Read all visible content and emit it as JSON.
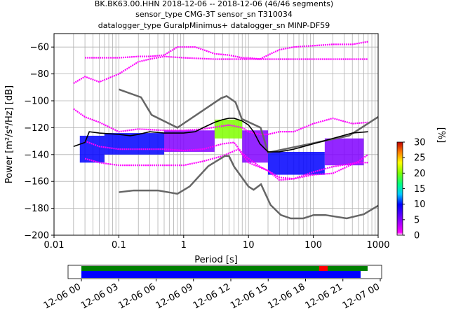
{
  "header": {
    "title_line1": "BK.BK63.00.HHN   2018-12-06 -- 2018-12-06  (46/46 segments)",
    "title_line2": "sensor_type CMG-3T sensor_sn T310034",
    "title_line3": "datalogger_type GuralpMinimus+ datalogger_sn MINP-DF59"
  },
  "colorbar": {
    "label": "[%]",
    "ticks": [
      "0",
      "5",
      "10",
      "15",
      "20",
      "25",
      "30"
    ],
    "range": [
      0,
      30
    ]
  },
  "timeline": {
    "tick_labels": [
      "12-06 00",
      "12-06 03",
      "12-06 06",
      "12-06 09",
      "12-06 12",
      "12-06 15",
      "12-06 18",
      "12-06 21",
      "12-07 00"
    ],
    "colors": {
      "coverage": "#008000",
      "gap": "#ff0000",
      "psd": "#0000ff"
    }
  },
  "chart_data": {
    "type": "heatmap",
    "title": "BK.BK63.00.HHN   2018-12-06 -- 2018-12-06  (46/46 segments)",
    "xlabel": "Period [s]",
    "ylabel": "Power [m²/s⁴/Hz] [dB]",
    "xscale": "log",
    "xlim": [
      0.01,
      1000
    ],
    "ylim": [
      -200,
      -50
    ],
    "x_ticks": [
      "0.01",
      "0.1",
      "1",
      "10",
      "100",
      "1000"
    ],
    "y_ticks": [
      "−200",
      "−180",
      "−160",
      "−140",
      "−120",
      "−100",
      "−80",
      "−60"
    ],
    "grid": true,
    "mode_line": {
      "color": "#000000",
      "x": [
        0.02,
        0.03,
        0.035,
        0.05,
        0.1,
        0.15,
        0.2,
        0.3,
        0.5,
        1,
        1.5,
        2,
        3,
        4,
        5,
        6,
        8,
        10,
        12,
        15,
        20,
        30,
        50,
        100,
        200,
        400,
        700
      ],
      "y": [
        -134,
        -131,
        -123,
        -124,
        -125,
        -126,
        -125,
        -123,
        -124,
        -124,
        -123,
        -120,
        -116,
        -114,
        -113,
        -113,
        -115,
        -118,
        -123,
        -132,
        -138,
        -138,
        -136,
        -132,
        -128,
        -124,
        -123
      ]
    },
    "nlnm": {
      "color": "#666666",
      "x": [
        0.1,
        0.17,
        0.4,
        0.8,
        1.24,
        2.4,
        4.3,
        5.0,
        6.0,
        10.0,
        12.0,
        15.6,
        21.9,
        31.6,
        45.0,
        70.0,
        101.0,
        154.0,
        328.0,
        600.0,
        1000.0
      ],
      "y": [
        -168.0,
        -166.7,
        -166.7,
        -169.2,
        -163.7,
        -148.6,
        -141.1,
        -141.1,
        -149.0,
        -163.8,
        -166.2,
        -162.1,
        -177.5,
        -185.0,
        -187.5,
        -187.5,
        -185.0,
        -185.0,
        -187.5,
        -184.4,
        -178.0
      ]
    },
    "nhnm": {
      "color": "#666666",
      "x": [
        0.1,
        0.22,
        0.32,
        0.8,
        3.8,
        4.6,
        6.3,
        7.9,
        15.4,
        20.0,
        354.8,
        1000.0
      ],
      "y": [
        -91.5,
        -97.4,
        -110.5,
        -120.0,
        -98.0,
        -96.5,
        -101.0,
        -113.5,
        -120.0,
        -138.5,
        -126.0,
        -112.0
      ]
    },
    "psd_density": [
      {
        "x": [
          0.025,
          0.06
        ],
        "y": [
          -146,
          -126
        ],
        "level": 10
      },
      {
        "x": [
          0.06,
          0.5
        ],
        "y": [
          -140,
          -124
        ],
        "level": 12
      },
      {
        "x": [
          0.5,
          3
        ],
        "y": [
          -138,
          -122
        ],
        "level": 8
      },
      {
        "x": [
          3,
          8
        ],
        "y": [
          -128,
          -114
        ],
        "level": 20
      },
      {
        "x": [
          8,
          20
        ],
        "y": [
          -146,
          -122
        ],
        "level": 6
      },
      {
        "x": [
          20,
          150
        ],
        "y": [
          -155,
          -138
        ],
        "level": 10
      },
      {
        "x": [
          150,
          600
        ],
        "y": [
          -148,
          -128
        ],
        "level": 8
      }
    ],
    "percentile_curves": [
      {
        "x": [
          0.03,
          0.04,
          0.1,
          0.2,
          0.3,
          0.5,
          0.8,
          1.5,
          2,
          3,
          5,
          8,
          10,
          15,
          20,
          30,
          50,
          100,
          200,
          400,
          700
        ],
        "y": [
          -68,
          -68,
          -68,
          -67,
          -67,
          -66,
          -60,
          -60,
          -62,
          -65,
          -66,
          -68,
          -68,
          -69,
          -66,
          -62,
          -60,
          -59,
          -58,
          -58,
          -56
        ]
      },
      {
        "x": [
          0.02,
          0.03,
          0.05,
          0.1,
          0.2,
          0.3,
          0.5,
          1,
          3,
          10,
          30,
          100,
          300,
          700
        ],
        "y": [
          -87,
          -82,
          -86,
          -80,
          -71,
          -69,
          -67,
          -68,
          -69,
          -69,
          -69,
          -69,
          -69,
          -69
        ]
      },
      {
        "x": [
          0.02,
          0.03,
          0.05,
          0.1,
          0.2,
          0.5,
          1,
          2,
          5,
          8,
          10,
          15,
          20,
          30,
          50,
          100,
          200,
          400,
          700
        ],
        "y": [
          -106,
          -112,
          -116,
          -123,
          -121,
          -122,
          -122,
          -121,
          -118,
          -120,
          -123,
          -125,
          -125,
          -123,
          -123,
          -117,
          -113,
          -117,
          -116
        ]
      },
      {
        "x": [
          0.03,
          0.05,
          0.1,
          0.2,
          0.5,
          1,
          2,
          4,
          6,
          8,
          10,
          15,
          20,
          30,
          50,
          100,
          200,
          500,
          700
        ],
        "y": [
          -130,
          -134,
          -136,
          -136,
          -136,
          -137,
          -136,
          -132,
          -131,
          -139,
          -143,
          -149,
          -152,
          -157,
          -158,
          -155,
          -154,
          -145,
          -140
        ]
      },
      {
        "x": [
          0.03,
          0.05,
          0.1,
          0.3,
          1,
          2,
          4,
          7,
          10,
          20,
          30,
          50,
          100,
          200,
          500,
          700
        ],
        "y": [
          -143,
          -146,
          -148,
          -148,
          -148,
          -145,
          -141,
          -136,
          -146,
          -152,
          -159,
          -158,
          -153,
          -149,
          -146,
          -146
        ]
      }
    ]
  }
}
